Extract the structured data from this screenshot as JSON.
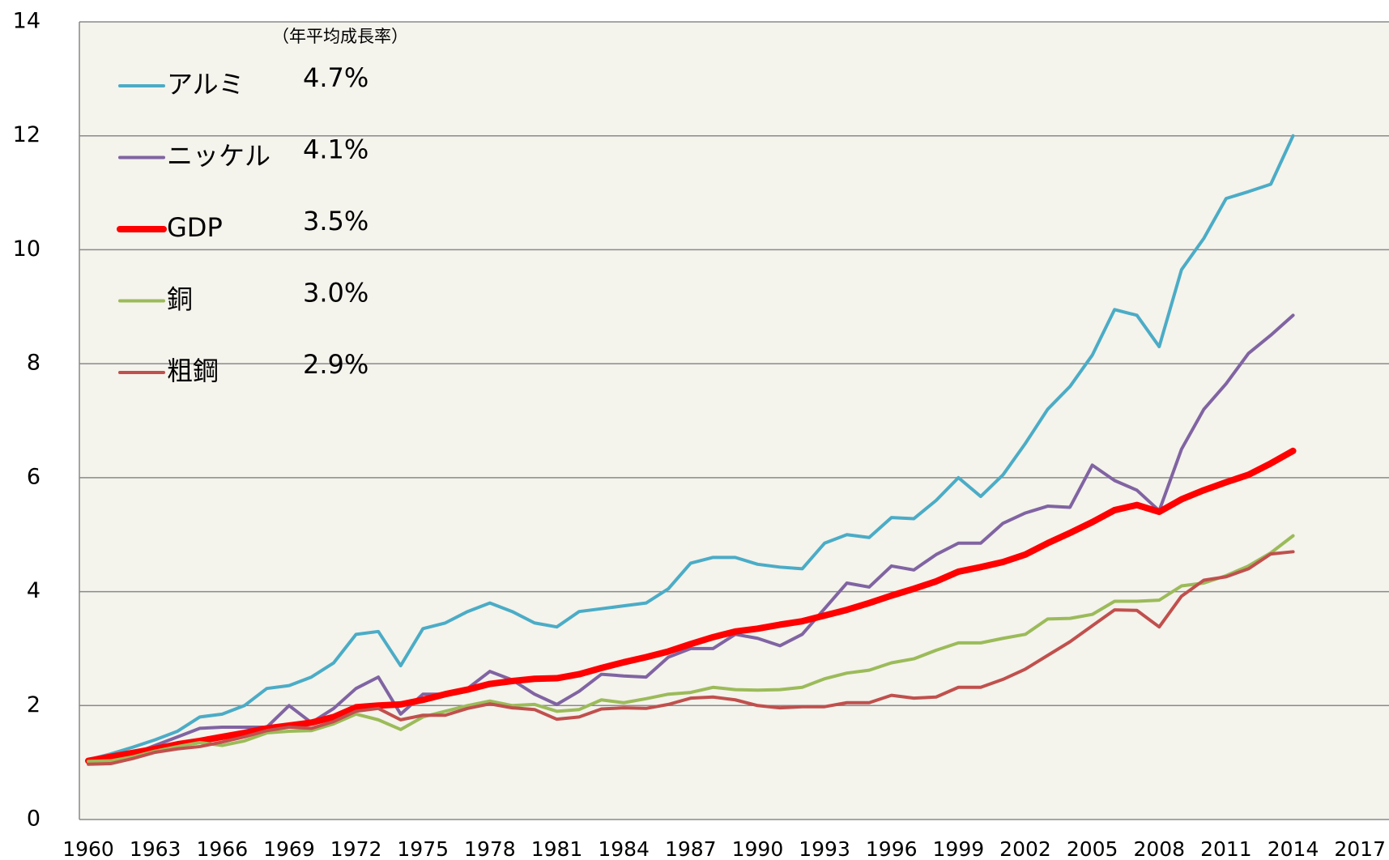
{
  "chart_data": {
    "type": "line",
    "note": "（年平均成長率）",
    "x": [
      1960,
      1961,
      1962,
      1963,
      1964,
      1965,
      1966,
      1967,
      1968,
      1969,
      1970,
      1971,
      1972,
      1973,
      1974,
      1975,
      1976,
      1977,
      1978,
      1979,
      1980,
      1981,
      1982,
      1983,
      1984,
      1985,
      1986,
      1987,
      1988,
      1989,
      1990,
      1991,
      1992,
      1993,
      1994,
      1995,
      1996,
      1997,
      1998,
      1999,
      2000,
      2001,
      2002,
      2003,
      2004,
      2005,
      2006,
      2007,
      2008,
      2009,
      2010,
      2011,
      2012,
      2013,
      2014
    ],
    "xlim": [
      1959.6,
      2018.3
    ],
    "xticks": [
      1960,
      1963,
      1966,
      1969,
      1972,
      1975,
      1978,
      1981,
      1984,
      1987,
      1990,
      1993,
      1996,
      1999,
      2002,
      2005,
      2008,
      2011,
      2014,
      2017
    ],
    "ylim": [
      0,
      14
    ],
    "yticks": [
      0,
      2,
      4,
      6,
      8,
      10,
      12,
      14
    ],
    "grid": true,
    "legend": "upper left",
    "series": [
      {
        "name": "アルミ",
        "rate_label": "4.7%",
        "color": "#4bacc6",
        "line_width": 4,
        "values": [
          1.05,
          1.15,
          1.27,
          1.4,
          1.55,
          1.8,
          1.85,
          2.0,
          2.3,
          2.35,
          2.5,
          2.75,
          3.25,
          3.3,
          2.7,
          3.35,
          3.45,
          3.65,
          3.8,
          3.65,
          3.45,
          3.38,
          3.65,
          3.7,
          3.75,
          3.8,
          4.05,
          4.5,
          4.6,
          4.6,
          4.48,
          4.43,
          4.4,
          4.85,
          5.0,
          4.95,
          5.3,
          5.28,
          5.6,
          6.0,
          5.67,
          6.05,
          6.6,
          7.2,
          7.6,
          8.15,
          8.95,
          8.85,
          8.3,
          9.65,
          10.2,
          10.9,
          11.02,
          11.15,
          12.0
        ]
      },
      {
        "name": "ニッケル",
        "rate_label": "4.1%",
        "color": "#8064a2",
        "line_width": 4,
        "values": [
          1.0,
          1.05,
          1.15,
          1.3,
          1.45,
          1.6,
          1.62,
          1.62,
          1.62,
          2.0,
          1.7,
          1.95,
          2.3,
          2.5,
          1.85,
          2.2,
          2.2,
          2.3,
          2.6,
          2.45,
          2.2,
          2.02,
          2.25,
          2.55,
          2.52,
          2.5,
          2.85,
          3.0,
          3.0,
          3.25,
          3.18,
          3.05,
          3.25,
          3.7,
          4.15,
          4.08,
          4.45,
          4.38,
          4.65,
          4.85,
          4.85,
          5.2,
          5.38,
          5.5,
          5.48,
          6.22,
          5.95,
          5.78,
          5.42,
          6.5,
          7.2,
          7.65,
          8.18,
          8.5,
          8.85
        ]
      },
      {
        "name": "GDP",
        "rate_label": "3.5%",
        "color": "#ff0000",
        "line_width": 8,
        "values": [
          1.03,
          1.1,
          1.17,
          1.24,
          1.32,
          1.38,
          1.45,
          1.52,
          1.6,
          1.65,
          1.7,
          1.8,
          1.97,
          2.0,
          2.02,
          2.1,
          2.2,
          2.28,
          2.38,
          2.43,
          2.47,
          2.48,
          2.55,
          2.66,
          2.76,
          2.85,
          2.95,
          3.08,
          3.2,
          3.3,
          3.35,
          3.42,
          3.48,
          3.58,
          3.68,
          3.8,
          3.93,
          4.05,
          4.18,
          4.35,
          4.43,
          4.52,
          4.65,
          4.85,
          5.03,
          5.22,
          5.43,
          5.52,
          5.4,
          5.62,
          5.78,
          5.92,
          6.05,
          6.25,
          6.47
        ]
      },
      {
        "name": "銅",
        "rate_label": "3.0%",
        "color": "#9bbb59",
        "line_width": 4,
        "values": [
          1.02,
          1.03,
          1.1,
          1.2,
          1.28,
          1.35,
          1.3,
          1.38,
          1.52,
          1.55,
          1.56,
          1.68,
          1.85,
          1.75,
          1.58,
          1.8,
          1.9,
          2.0,
          2.08,
          2.0,
          2.02,
          1.9,
          1.93,
          2.1,
          2.05,
          2.12,
          2.2,
          2.23,
          2.32,
          2.28,
          2.27,
          2.28,
          2.32,
          2.47,
          2.57,
          2.62,
          2.75,
          2.82,
          2.97,
          3.1,
          3.1,
          3.18,
          3.25,
          3.52,
          3.53,
          3.6,
          3.83,
          3.83,
          3.85,
          4.1,
          4.15,
          4.28,
          4.45,
          4.68,
          4.98
        ]
      },
      {
        "name": "粗鋼",
        "rate_label": "2.9%",
        "color": "#c0504d",
        "line_width": 4,
        "values": [
          0.97,
          0.98,
          1.07,
          1.18,
          1.24,
          1.28,
          1.36,
          1.45,
          1.56,
          1.62,
          1.6,
          1.72,
          1.9,
          1.95,
          1.75,
          1.83,
          1.83,
          1.95,
          2.03,
          1.96,
          1.93,
          1.76,
          1.8,
          1.94,
          1.96,
          1.95,
          2.02,
          2.13,
          2.15,
          2.1,
          2.0,
          1.96,
          1.98,
          1.98,
          2.05,
          2.05,
          2.18,
          2.13,
          2.15,
          2.32,
          2.32,
          2.46,
          2.64,
          2.88,
          3.12,
          3.4,
          3.68,
          3.67,
          3.38,
          3.92,
          4.2,
          4.26,
          4.4,
          4.66,
          4.7
        ]
      }
    ]
  }
}
